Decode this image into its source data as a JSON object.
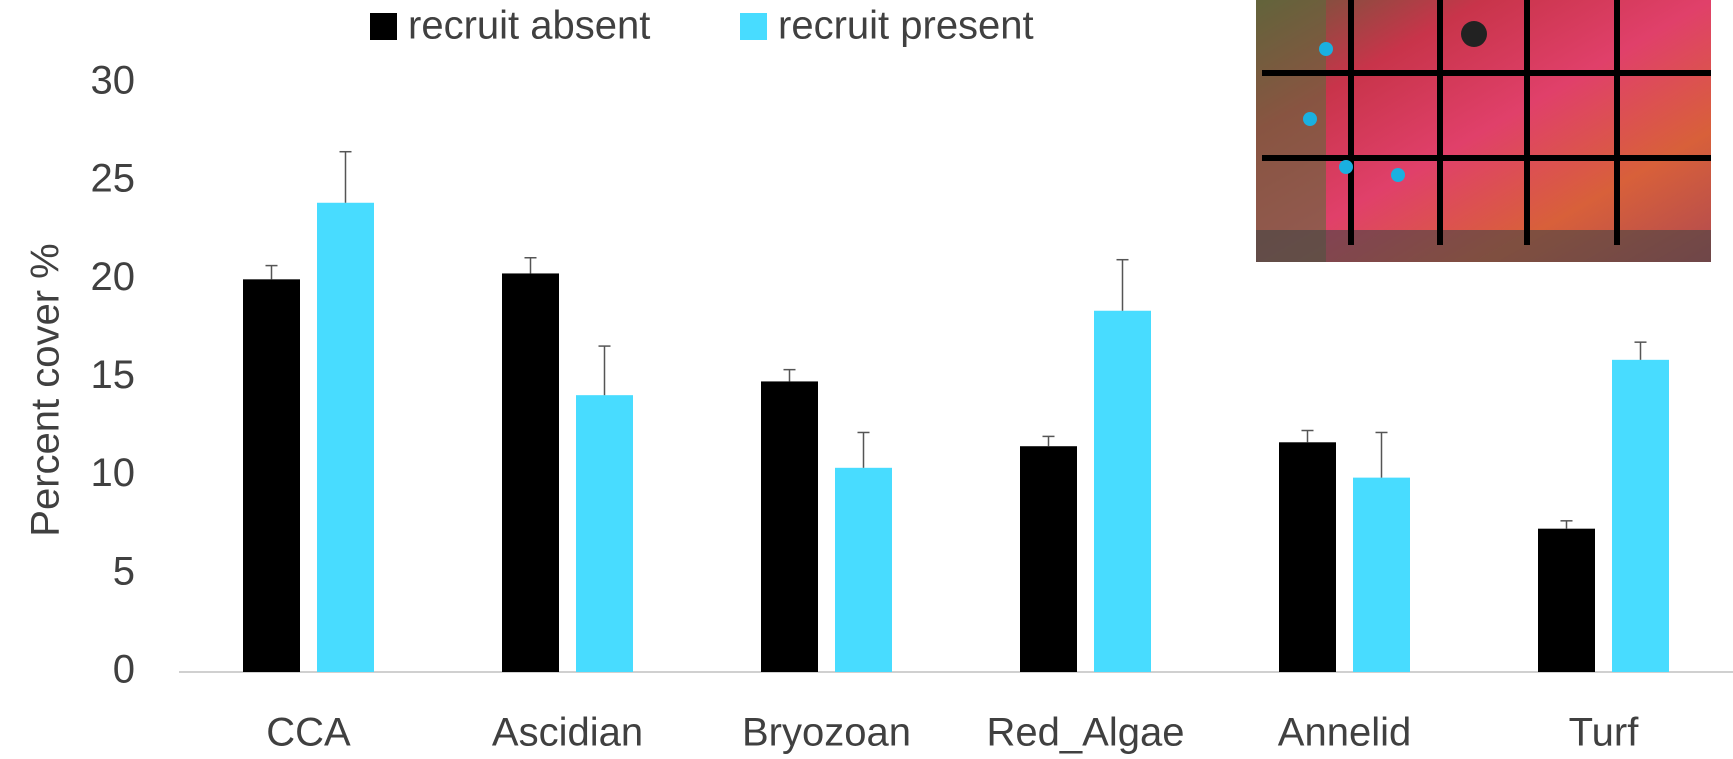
{
  "chart_data": {
    "type": "bar",
    "ylabel": "Percent cover %",
    "categories": [
      "CCA",
      "Ascidian",
      "Bryozoan",
      "Red_Algae",
      "Annelid",
      "Turf"
    ],
    "series": [
      {
        "name": "recruit absent",
        "color": "#000000",
        "values": [
          20.0,
          20.3,
          14.8,
          11.5,
          11.7,
          7.3
        ],
        "errors": [
          0.7,
          0.8,
          0.6,
          0.5,
          0.6,
          0.4
        ]
      },
      {
        "name": "recruit present",
        "color": "#48dcff",
        "values": [
          23.9,
          14.1,
          10.4,
          18.4,
          9.9,
          15.9
        ],
        "errors": [
          2.6,
          2.5,
          1.8,
          2.6,
          2.3,
          0.9
        ]
      }
    ],
    "ylim": [
      0,
      30
    ],
    "yticks": [
      0,
      5,
      10,
      15,
      20,
      25,
      30
    ],
    "grid": false
  }
}
